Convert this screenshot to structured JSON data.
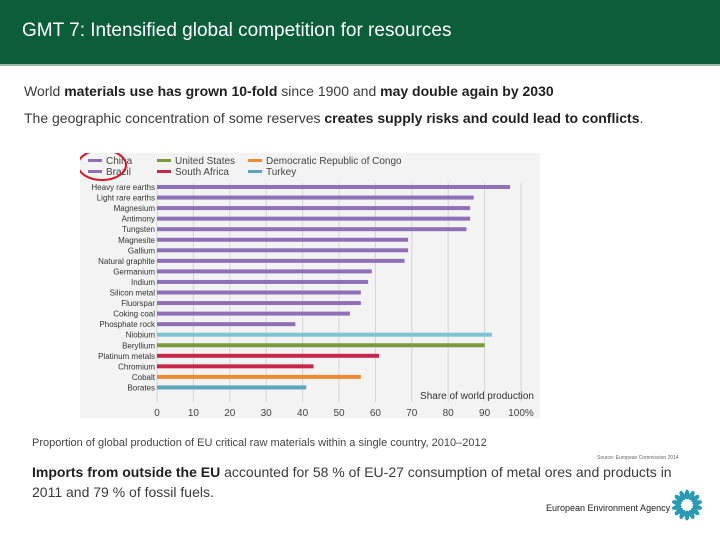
{
  "header": {
    "title": "GMT 7:  Intensified global competition for resources"
  },
  "intro": {
    "line1": [
      {
        "text": "World ",
        "bold": false
      },
      {
        "text": "materials use has grown 10-fold",
        "bold": true
      },
      {
        "text": " since 1900 and ",
        "bold": false
      },
      {
        "text": "may double again by 2030",
        "bold": true
      }
    ],
    "line2": [
      {
        "text": "The geographic concentration of some reserves ",
        "bold": false
      },
      {
        "text": "creates supply risks and could lead to conflicts",
        "bold": true
      },
      {
        "text": ".",
        "bold": false
      }
    ]
  },
  "chart_data": {
    "type": "bar",
    "orientation": "horizontal",
    "title": "",
    "xlabel": "Share of world production",
    "ylabel": "",
    "xlim": [
      0,
      100
    ],
    "x_ticks": [
      "0",
      "10",
      "20",
      "30",
      "40",
      "50",
      "60",
      "70",
      "80",
      "90",
      "100%"
    ],
    "legend": [
      {
        "name": "China",
        "color": "#8e6fb8"
      },
      {
        "name": "Brazil",
        "color": "#8e6fb8"
      },
      {
        "name": "United States",
        "color": "#7b9a3c"
      },
      {
        "name": "South Africa",
        "color": "#c8264a"
      },
      {
        "name": "Democratic Republic of Congo",
        "color": "#ee8a34"
      },
      {
        "name": "Turkey",
        "color": "#5aa7bb"
      }
    ],
    "highlight_legend": [
      "China",
      "Brazil"
    ],
    "highlight_color": "#d21a2a",
    "bars": [
      {
        "label": "Heavy rare earths",
        "value": 97,
        "color": "#8e6fb8"
      },
      {
        "label": "Light rare earths",
        "value": 87,
        "color": "#8e6fb8"
      },
      {
        "label": "Magnesium",
        "value": 86,
        "color": "#8e6fb8"
      },
      {
        "label": "Antimony",
        "value": 86,
        "color": "#8e6fb8"
      },
      {
        "label": "Tungsten",
        "value": 85,
        "color": "#8e6fb8"
      },
      {
        "label": "Magnesite",
        "value": 69,
        "color": "#8e6fb8"
      },
      {
        "label": "Gallium",
        "value": 69,
        "color": "#8e6fb8"
      },
      {
        "label": "Natural graphite",
        "value": 68,
        "color": "#8e6fb8"
      },
      {
        "label": "Germanium",
        "value": 59,
        "color": "#8e6fb8"
      },
      {
        "label": "Indium",
        "value": 58,
        "color": "#8e6fb8"
      },
      {
        "label": "Silicon metal",
        "value": 56,
        "color": "#8e6fb8"
      },
      {
        "label": "Fluorspar",
        "value": 56,
        "color": "#8e6fb8"
      },
      {
        "label": "Coking coal",
        "value": 53,
        "color": "#8e6fb8"
      },
      {
        "label": "Phosphate rock",
        "value": 38,
        "color": "#8e6fb8"
      },
      {
        "label": "Niobium",
        "value": 92,
        "color": "#7cc5d4"
      },
      {
        "label": "Beryllium",
        "value": 90,
        "color": "#7b9a3c"
      },
      {
        "label": "Platinum metals",
        "value": 61,
        "color": "#c8264a"
      },
      {
        "label": "Chromium",
        "value": 43,
        "color": "#c8264a"
      },
      {
        "label": "Cobalt",
        "value": 56,
        "color": "#ee8a34"
      },
      {
        "label": "Borates",
        "value": 41,
        "color": "#5aa7bb"
      }
    ]
  },
  "caption": "Proportion of global production of EU critical raw materials within a single country, 2010–2012",
  "source": "Source: European Commission 2014",
  "imports": [
    {
      "text": "Imports from outside the EU",
      "bold": true
    },
    {
      "text": " accounted for 58 % of EU-27 consumption of metal ores and products in 2011 and 79 % of fossil fuels.",
      "bold": false
    }
  ],
  "footer": {
    "agency": "European Environment Agency"
  },
  "colors": {
    "header_bg": "#0c5d3a",
    "logo": "#2a9ab3"
  },
  "icons": {
    "logo": "eea-sunburst-logo-icon"
  }
}
